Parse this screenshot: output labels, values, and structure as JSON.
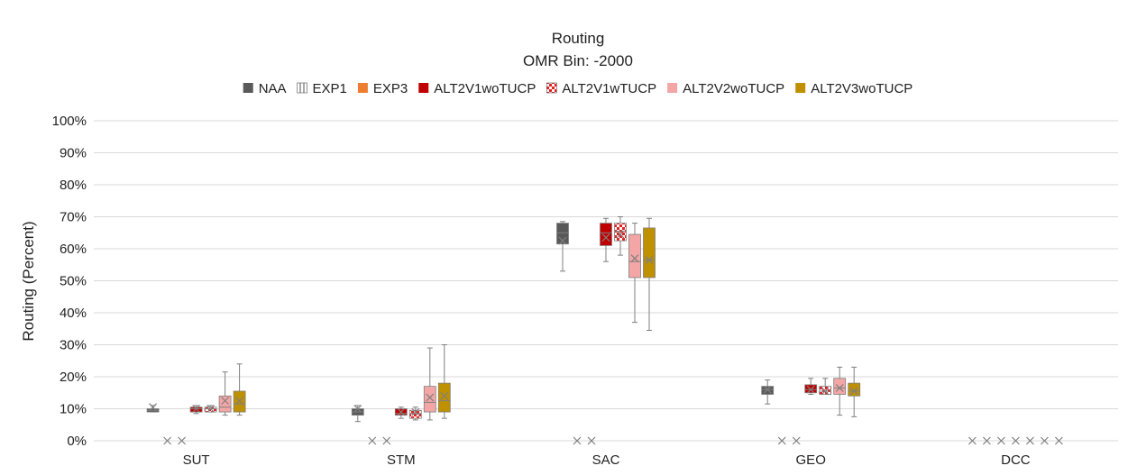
{
  "chart_data": {
    "type": "box",
    "title": "Routing",
    "subtitle": "OMR Bin: -2000",
    "ylabel": "Routing (Percent)",
    "xlabel": "",
    "ylim": [
      0,
      100
    ],
    "y_ticks": [
      "0%",
      "10%",
      "20%",
      "30%",
      "40%",
      "50%",
      "60%",
      "70%",
      "80%",
      "90%",
      "100%"
    ],
    "grid": true,
    "legend_position": "top",
    "categories": [
      "SUT",
      "STM",
      "SAC",
      "GEO",
      "DCC"
    ],
    "series": [
      {
        "name": "NAA",
        "color": "#595959",
        "pattern": "solid",
        "boxes": [
          {
            "min": 9,
            "q1": 9,
            "median": 9.5,
            "q3": 10,
            "max": 11,
            "mean": 10.5
          },
          {
            "min": 6,
            "q1": 8,
            "median": 9,
            "q3": 10,
            "max": 11,
            "mean": 10
          },
          {
            "min": 53,
            "q1": 61.5,
            "median": 65,
            "q3": 68,
            "max": 68.5,
            "mean": 62.5
          },
          {
            "min": 11.5,
            "q1": 14.5,
            "median": 16,
            "q3": 17,
            "max": 19,
            "mean": 16
          },
          {
            "min": 0,
            "q1": 0,
            "median": 0,
            "q3": 0,
            "max": 0,
            "mean": 0
          }
        ]
      },
      {
        "name": "EXP1",
        "color": "#ffffff",
        "pattern": "vlines",
        "boxes": [
          {
            "min": 0,
            "q1": 0,
            "median": 0,
            "q3": 0,
            "max": 0,
            "mean": 0
          },
          {
            "min": 0,
            "q1": 0,
            "median": 0,
            "q3": 0,
            "max": 0,
            "mean": 0
          },
          {
            "min": 0,
            "q1": 0,
            "median": 0,
            "q3": 0,
            "max": 0,
            "mean": 0
          },
          {
            "min": 0,
            "q1": 0,
            "median": 0,
            "q3": 0,
            "max": 0,
            "mean": 0
          },
          {
            "min": 0,
            "q1": 0,
            "median": 0,
            "q3": 0,
            "max": 0,
            "mean": 0
          }
        ]
      },
      {
        "name": "EXP3",
        "color": "#ed7d31",
        "pattern": "solid",
        "boxes": [
          {
            "min": 0,
            "q1": 0,
            "median": 0,
            "q3": 0,
            "max": 0,
            "mean": 0
          },
          {
            "min": 0,
            "q1": 0,
            "median": 0,
            "q3": 0,
            "max": 0,
            "mean": 0
          },
          {
            "min": 0,
            "q1": 0,
            "median": 0,
            "q3": 0,
            "max": 0,
            "mean": 0
          },
          {
            "min": 0,
            "q1": 0,
            "median": 0,
            "q3": 0,
            "max": 0,
            "mean": 0
          },
          {
            "min": 0,
            "q1": 0,
            "median": 0,
            "q3": 0,
            "max": 0,
            "mean": 0
          }
        ]
      },
      {
        "name": "ALT2V1woTUCP",
        "color": "#c00000",
        "pattern": "solid",
        "boxes": [
          {
            "min": 8.5,
            "q1": 9,
            "median": 10,
            "q3": 10.5,
            "max": 11,
            "mean": 10
          },
          {
            "min": 7,
            "q1": 8,
            "median": 8.5,
            "q3": 10,
            "max": 10.5,
            "mean": 9
          },
          {
            "min": 56,
            "q1": 61,
            "median": 65,
            "q3": 68,
            "max": 69.5,
            "mean": 63.5
          },
          {
            "min": 14.5,
            "q1": 15,
            "median": 16,
            "q3": 17.5,
            "max": 19.5,
            "mean": 16
          },
          {
            "min": 0,
            "q1": 0,
            "median": 0,
            "q3": 0,
            "max": 0,
            "mean": 0
          }
        ]
      },
      {
        "name": "ALT2V1wTUCP",
        "color": "#e81f1f",
        "pattern": "checker",
        "boxes": [
          {
            "min": 9,
            "q1": 9,
            "median": 10,
            "q3": 10.5,
            "max": 11,
            "mean": 10
          },
          {
            "min": 6.5,
            "q1": 7,
            "median": 8.5,
            "q3": 9.5,
            "max": 10.5,
            "mean": 9
          },
          {
            "min": 58,
            "q1": 62.5,
            "median": 65.5,
            "q3": 68,
            "max": 70,
            "mean": 64.5
          },
          {
            "min": 14.5,
            "q1": 14.5,
            "median": 15.5,
            "q3": 17,
            "max": 19.5,
            "mean": 15.5
          },
          {
            "min": 0,
            "q1": 0,
            "median": 0,
            "q3": 0,
            "max": 0,
            "mean": 0
          }
        ]
      },
      {
        "name": "ALT2V2woTUCP",
        "color": "#f4a6a6",
        "pattern": "solid",
        "boxes": [
          {
            "min": 8,
            "q1": 9,
            "median": 10.5,
            "q3": 14,
            "max": 21.5,
            "mean": 12.5
          },
          {
            "min": 6.5,
            "q1": 9,
            "median": 12,
            "q3": 17,
            "max": 29,
            "mean": 13.5
          },
          {
            "min": 37,
            "q1": 51,
            "median": 56,
            "q3": 64.5,
            "max": 68,
            "mean": 57
          },
          {
            "min": 8,
            "q1": 14.5,
            "median": 16.5,
            "q3": 19.5,
            "max": 23,
            "mean": 16.5
          },
          {
            "min": 0,
            "q1": 0,
            "median": 0,
            "q3": 0,
            "max": 0,
            "mean": 0
          }
        ]
      },
      {
        "name": "ALT2V3woTUCP",
        "color": "#bf9000",
        "pattern": "solid",
        "boxes": [
          {
            "min": 8,
            "q1": 9,
            "median": 11.5,
            "q3": 15.5,
            "max": 24,
            "mean": 12.5
          },
          {
            "min": 7,
            "q1": 9,
            "median": 12.5,
            "q3": 18,
            "max": 30,
            "mean": 14
          },
          {
            "min": 34.5,
            "q1": 51,
            "median": 56.5,
            "q3": 66.5,
            "max": 69.5,
            "mean": 56.5
          },
          {
            "min": 7.5,
            "q1": 14,
            "median": 15.5,
            "q3": 18,
            "max": 23,
            "mean": 15.5
          },
          {
            "min": 0,
            "q1": 0,
            "median": 0,
            "q3": 0,
            "max": 0,
            "mean": 0
          }
        ]
      }
    ]
  }
}
